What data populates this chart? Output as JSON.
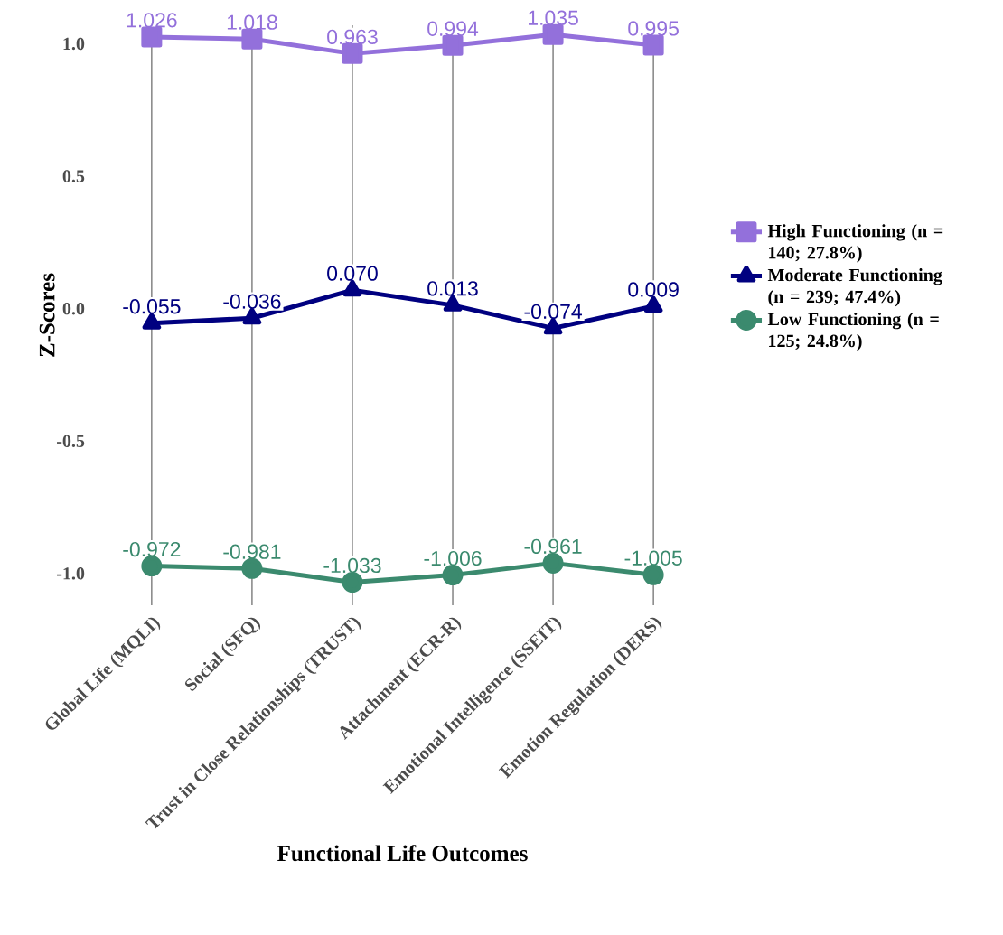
{
  "chart_data": {
    "type": "line",
    "xlabel": "Functional Life Outcomes",
    "ylabel": "Z-Scores",
    "categories": [
      "Global Life (MQLI)",
      "Social (SFQ)",
      "Trust in Close Relationships (TRUST)",
      "Attachment (ECR-R)",
      "Emotional Intelligence (SSEIT)",
      "Emotion Regulation (DERS)"
    ],
    "ylim": [
      -1.12,
      1.07
    ],
    "yticks": [
      {
        "value": -1,
        "label": "-1.0"
      },
      {
        "value": -0.5,
        "label": "-0.5"
      },
      {
        "value": 0,
        "label": "0.0"
      },
      {
        "value": 0.5,
        "label": "0.5"
      },
      {
        "value": 1,
        "label": "1.0"
      }
    ],
    "grid": "x",
    "legend": "right",
    "series": [
      {
        "name": "High Functioning (n = 140; 27.8%)",
        "color": "#9370db",
        "marker": "square",
        "values": [
          1.026,
          1.018,
          0.963,
          0.994,
          1.035,
          0.995
        ],
        "value_labels": [
          "1.026",
          "1.018",
          "0.963",
          "0.994",
          "1.035",
          "0.995"
        ]
      },
      {
        "name": "Moderate Functioning (n = 239; 47.4%)",
        "color": "#000080",
        "marker": "triangle",
        "values": [
          -0.055,
          -0.036,
          0.07,
          0.013,
          -0.074,
          0.009
        ],
        "value_labels": [
          "-0.055",
          "-0.036",
          "0.070",
          "0.013",
          "-0.074",
          "0.009"
        ]
      },
      {
        "name": "Low Functioning (n = 125; 24.8%)",
        "color": "#3b8a6e",
        "marker": "circle",
        "values": [
          -0.972,
          -0.981,
          -1.033,
          -1.006,
          -0.961,
          -1.005
        ],
        "value_labels": [
          "-0.972",
          "-0.981",
          "-1.033",
          "-1.006",
          "-0.961",
          "-1.005"
        ]
      }
    ]
  }
}
